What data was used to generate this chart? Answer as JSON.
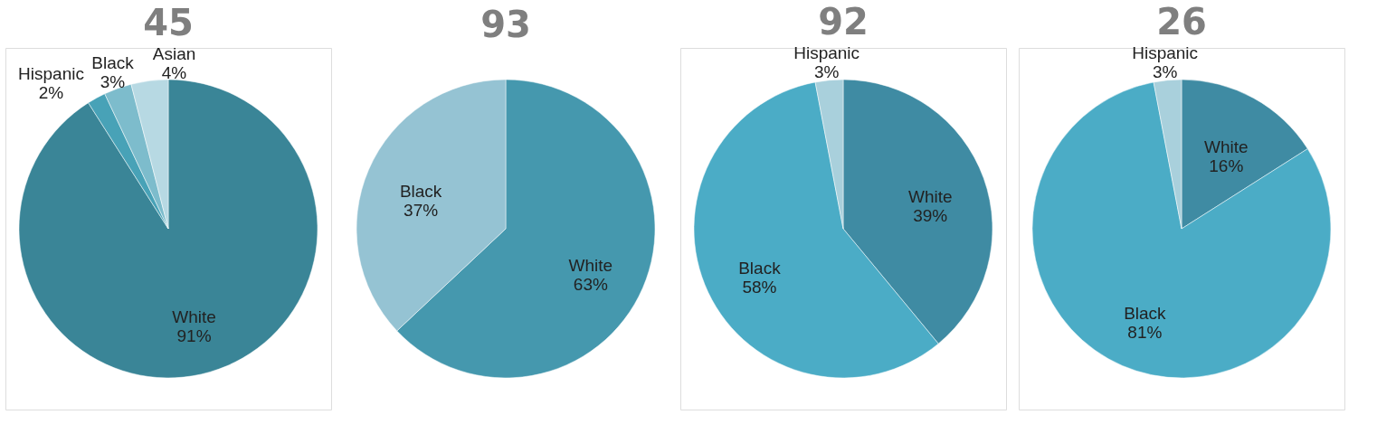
{
  "chart_data": [
    {
      "type": "pie",
      "title": "45",
      "categories": [
        "White",
        "Hispanic",
        "Black",
        "Asian"
      ],
      "values": [
        91,
        2,
        3,
        4
      ],
      "colors": [
        "#3a8597",
        "#48a2b7",
        "#7dbccc",
        "#b7d9e3"
      ],
      "value_labels": [
        "91%",
        "2%",
        "3%",
        "4%"
      ]
    },
    {
      "type": "pie",
      "title": "93",
      "categories": [
        "White",
        "Black"
      ],
      "values": [
        63,
        37
      ],
      "colors": [
        "#4598ae",
        "#95c3d3"
      ],
      "value_labels": [
        "63%",
        "37%"
      ]
    },
    {
      "type": "pie",
      "title": "92",
      "categories": [
        "White",
        "Black",
        "Hispanic"
      ],
      "values": [
        39,
        58,
        3
      ],
      "colors": [
        "#3f8ba3",
        "#4bacc6",
        "#a9d0dc"
      ],
      "value_labels": [
        "39%",
        "58%",
        "3%"
      ]
    },
    {
      "type": "pie",
      "title": "26",
      "categories": [
        "White",
        "Black",
        "Hispanic"
      ],
      "values": [
        16,
        81,
        3
      ],
      "colors": [
        "#3f8ba3",
        "#4bacc6",
        "#a9d0dc"
      ],
      "value_labels": [
        "16%",
        "81%",
        "3%"
      ]
    }
  ]
}
